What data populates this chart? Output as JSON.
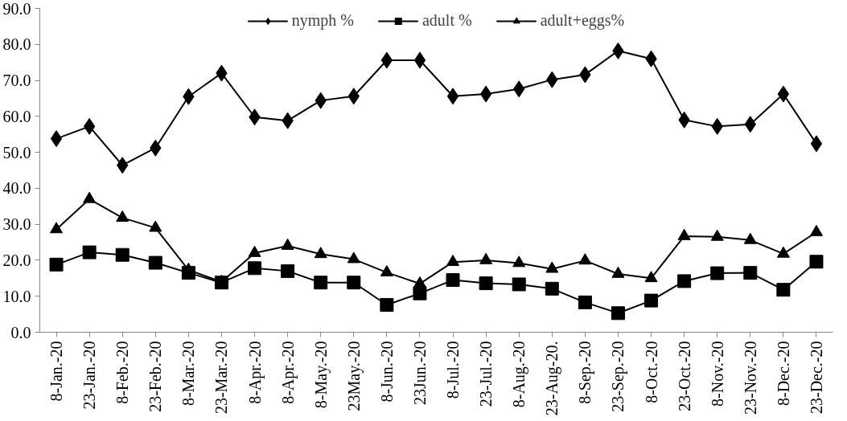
{
  "chart_data": {
    "type": "line",
    "categories": [
      "8-Jan.-20",
      "23-Jan.-20",
      "8-Feb.-20",
      "23-Feb.-20",
      "8-Mar.-20",
      "23-Mar.-20",
      "8-Apr.-20",
      "8-Apr.-20",
      "8-May.-20",
      "23May.-20",
      "8-Jun.-20",
      "23Jun.-20",
      "8-Jul.-20",
      "23-Jul.-20",
      "8-Aug.-20",
      "23-Aug-20.",
      "8-Sep.-20",
      "23-Sep.-20",
      "8-Oct.-20",
      "23-Oct.-20",
      "8-Nov.-20",
      "23-Nov.-20",
      "8-Dec.-20",
      "23-Dec.-20"
    ],
    "series": [
      {
        "name": "nymph %",
        "color": "#000000",
        "marker": "diamond",
        "values": [
          53.8,
          57.2,
          46.4,
          51.2,
          65.5,
          72.0,
          59.8,
          58.8,
          64.4,
          65.6,
          75.6,
          75.6,
          65.6,
          66.2,
          67.6,
          70.2,
          71.6,
          78.2,
          76.0,
          59.0,
          57.2,
          57.8,
          66.2,
          52.4
        ]
      },
      {
        "name": "adult %",
        "color": "#000000",
        "marker": "square",
        "values": [
          18.8,
          22.2,
          21.5,
          19.3,
          16.5,
          13.8,
          17.8,
          17.0,
          13.8,
          13.8,
          7.6,
          10.8,
          14.5,
          13.6,
          13.3,
          12.1,
          8.3,
          5.3,
          8.8,
          14.2,
          16.4,
          16.5,
          11.8,
          19.6
        ]
      },
      {
        "name": "adult+eggs%",
        "color": "#000000",
        "marker": "triangle",
        "values": [
          28.6,
          37.0,
          31.8,
          29.0,
          17.3,
          14.0,
          22.0,
          24.0,
          21.7,
          20.3,
          16.6,
          13.5,
          19.5,
          20.0,
          19.2,
          17.6,
          19.9,
          16.2,
          15.0,
          26.7,
          26.5,
          25.6,
          21.8,
          27.8
        ]
      }
    ],
    "ylim": [
      0,
      90
    ],
    "yticks": [
      {
        "value": 0,
        "label": "0.0"
      },
      {
        "value": 10,
        "label": "10.0"
      },
      {
        "value": 20,
        "label": "20.0"
      },
      {
        "value": 30,
        "label": "30.0"
      },
      {
        "value": 40,
        "label": "40.0"
      },
      {
        "value": 50,
        "label": "50.0"
      },
      {
        "value": 60,
        "label": "60.0"
      },
      {
        "value": 70,
        "label": "70.0"
      },
      {
        "value": 80,
        "label": "80.0"
      },
      {
        "value": 90,
        "label": "90.0"
      }
    ],
    "grid": false,
    "legend": "top",
    "line_style": "solid"
  }
}
